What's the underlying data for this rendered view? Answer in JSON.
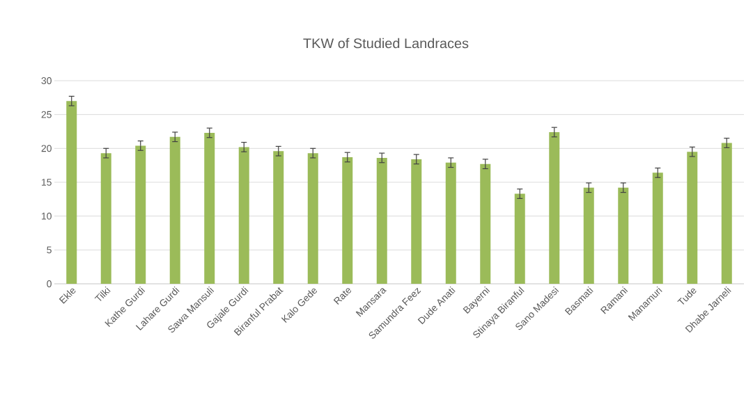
{
  "chart_data": {
    "type": "bar",
    "title": "TKW of Studied Landraces",
    "categories": [
      "Ekle",
      "Tilki",
      "Kathe Gurdi",
      "Lahare Gurdi",
      "Sawa Mansuli",
      "Gajale Gurdi",
      "Biranful Prabat",
      "Kalo Gede",
      "Rate",
      "Mansara",
      "Samundra Feez",
      "Dude Anati",
      "Bayerni",
      "Stinaya Biranful",
      "Sano Madesi",
      "Basmati",
      "Ramani",
      "Manamuri",
      "Tude",
      "Dhabe Jarneli"
    ],
    "values": [
      27.0,
      19.3,
      20.4,
      21.7,
      22.3,
      20.2,
      19.6,
      19.3,
      18.7,
      18.6,
      18.4,
      17.9,
      17.7,
      13.3,
      22.4,
      14.2,
      14.2,
      16.4,
      19.5,
      20.8
    ],
    "errors": [
      0.7,
      0.7,
      0.7,
      0.7,
      0.7,
      0.7,
      0.7,
      0.7,
      0.7,
      0.7,
      0.7,
      0.7,
      0.7,
      0.7,
      0.7,
      0.7,
      0.7,
      0.7,
      0.7,
      0.7
    ],
    "color": "#9bbb59",
    "ylim": [
      0,
      30
    ],
    "yticks": [
      0,
      5,
      10,
      15,
      20,
      25,
      30
    ],
    "grid": "y",
    "legend": false
  }
}
